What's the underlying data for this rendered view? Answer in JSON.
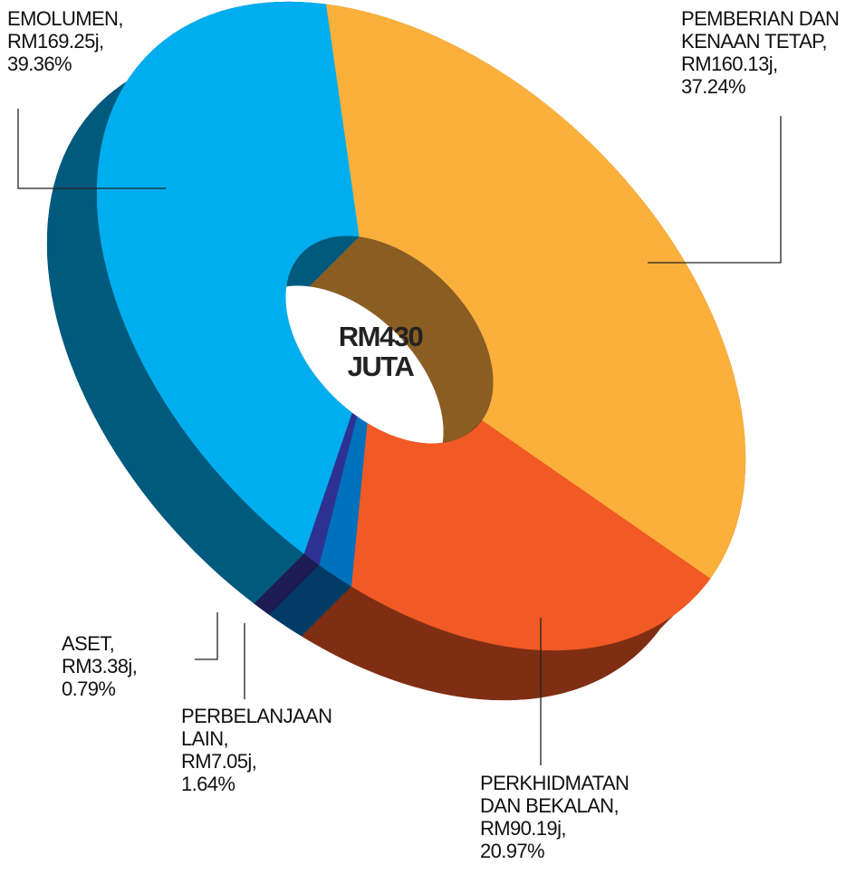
{
  "chart_data": {
    "type": "pie",
    "center_label": "RM430\nJUTA",
    "categories": [
      "PEMBERIAN DAN\nKENAAN TETAP,",
      "PERKHIDMATAN\nDAN BEKALAN,",
      "PERBELANJAAN\nLAIN,",
      "ASET,",
      "EMOLUMEN,"
    ],
    "amounts": [
      160.13,
      90.19,
      7.05,
      3.38,
      169.25
    ],
    "amount_labels": [
      "RM160.13j,",
      "RM90.19j,",
      "RM7.05j,",
      "RM3.38j,",
      "RM169.25j,"
    ],
    "values": [
      37.24,
      20.97,
      1.64,
      0.79,
      39.36
    ],
    "value_labels": [
      "37.24%",
      "20.97%",
      "1.64%",
      "0.79%",
      "39.36%"
    ],
    "colors": [
      "#fbb03b",
      "#f15a24",
      "#0071bc",
      "#2e3192",
      "#00aeef"
    ],
    "side_colors": [
      "#8a5d22",
      "#7f2e13",
      "#003b66",
      "#1c1b52",
      "#005a7d"
    ]
  }
}
